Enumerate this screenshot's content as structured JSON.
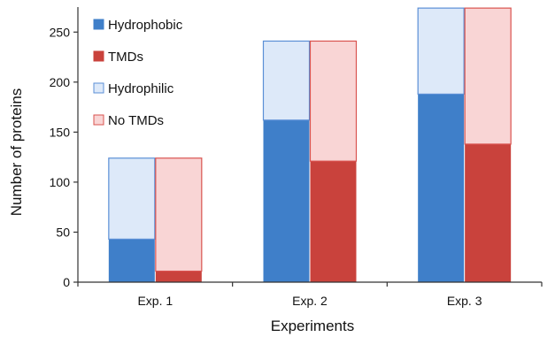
{
  "chart_data": {
    "type": "bar",
    "subtype": "stacked-grouped",
    "categories": [
      "Exp. 1",
      "Exp. 2",
      "Exp. 3"
    ],
    "xlabel": "Experiments",
    "ylabel": "Number of proteins",
    "ylim": [
      0,
      275
    ],
    "yticks": [
      0,
      50,
      100,
      150,
      200,
      250
    ],
    "grid": false,
    "legend_position": "top-left",
    "groups": [
      {
        "series": [
          {
            "name": "Hydrophobic",
            "color": "#3f7fc9",
            "values": [
              43,
              162,
              188
            ]
          },
          {
            "name": "Hydrophilic",
            "color": "#dde9f9",
            "values": [
              81,
              79,
              86
            ]
          }
        ]
      },
      {
        "series": [
          {
            "name": "TMDs",
            "color": "#c9423c",
            "values": [
              11,
              121,
              138
            ]
          },
          {
            "name": "No TMDs",
            "color": "#f9d5d5",
            "values": [
              113,
              120,
              136
            ]
          }
        ]
      }
    ],
    "legend": [
      {
        "label": "Hydrophobic",
        "color": "#3f7fc9",
        "border": "#3f7fc9"
      },
      {
        "label": "TMDs",
        "color": "#c9423c",
        "border": "#c9423c"
      },
      {
        "label": "Hydrophilic",
        "color": "#dde9f9",
        "border": "#5b8fd6"
      },
      {
        "label": "No TMDs",
        "color": "#f9d5d5",
        "border": "#d9534f"
      }
    ]
  }
}
